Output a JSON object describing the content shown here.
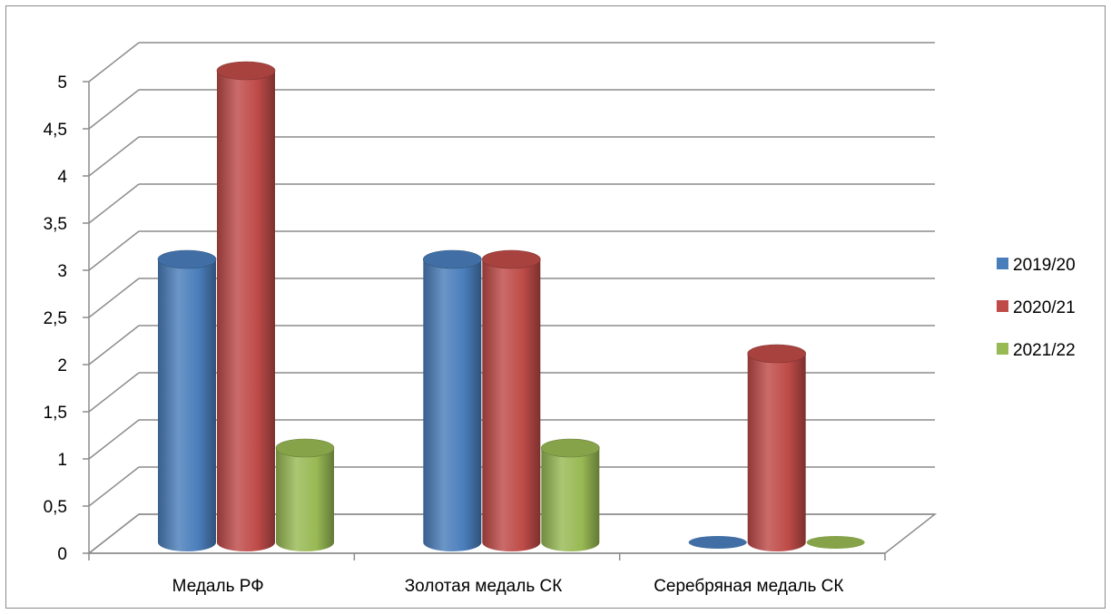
{
  "chart_data": {
    "type": "bar",
    "title": "",
    "xlabel": "",
    "ylabel": "",
    "categories": [
      "Медаль РФ",
      "Золотая медаль СК",
      "Серебряная медаль СК"
    ],
    "series": [
      {
        "name": "2019/20",
        "values": [
          3,
          3,
          0
        ],
        "color": "#4a7ebb"
      },
      {
        "name": "2020/21",
        "values": [
          5,
          3,
          2
        ],
        "color": "#be4b48"
      },
      {
        "name": "2021/22",
        "values": [
          1,
          1,
          0
        ],
        "color": "#98b954"
      }
    ],
    "ylim": [
      0,
      5
    ],
    "yticks": [
      "0",
      "0,5",
      "1",
      "1,5",
      "2",
      "2,5",
      "3",
      "3,5",
      "4",
      "4,5",
      "5"
    ],
    "grid": true,
    "legend_position": "right",
    "style": "3d-cylinder"
  }
}
